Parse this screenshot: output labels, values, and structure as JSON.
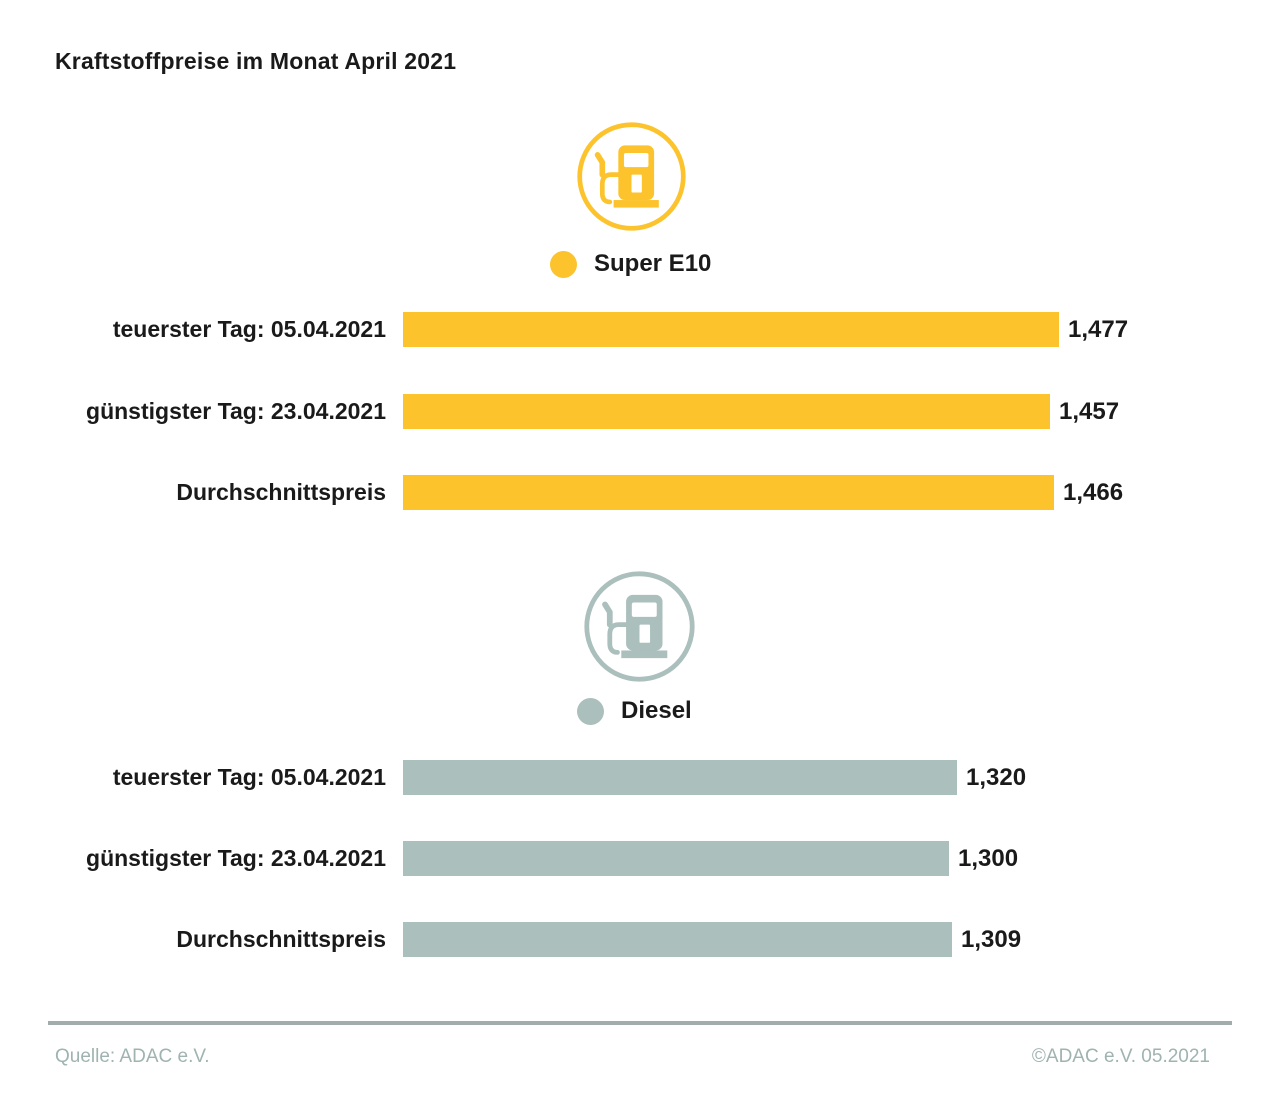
{
  "title": "Kraftstoffpreise im Monat April 2021",
  "colors": {
    "super_e10": "#FCC32C",
    "diesel": "#ABBFBD",
    "text": "#1A1A1A",
    "footer_text": "#9FB3B0",
    "footer_rule": "#A2ADAB",
    "background": "#FFFFFF"
  },
  "chart_data": [
    {
      "type": "bar",
      "orientation": "horizontal",
      "legend": "Super E10",
      "icon": "fuel-pump-icon",
      "color": "#FCC32C",
      "categories": [
        "teuerster Tag: 05.04.2021",
        "günstigster Tag: 23.04.2021",
        "Durchschnittspreis"
      ],
      "values": [
        1.477,
        1.457,
        1.466
      ],
      "value_labels": [
        "1,477",
        "1,457",
        "1,466"
      ]
    },
    {
      "type": "bar",
      "orientation": "horizontal",
      "legend": "Diesel",
      "icon": "fuel-pump-icon",
      "color": "#ABBFBD",
      "categories": [
        "teuerster Tag: 05.04.2021",
        "günstigster Tag: 23.04.2021",
        "Durchschnittspreis"
      ],
      "values": [
        1.32,
        1.3,
        1.309
      ],
      "value_labels": [
        "1,320",
        "1,300",
        "1,309"
      ]
    }
  ],
  "footer": {
    "source": "Quelle: ADAC e.V.",
    "copyright": "©ADAC e.V. 05.2021"
  }
}
